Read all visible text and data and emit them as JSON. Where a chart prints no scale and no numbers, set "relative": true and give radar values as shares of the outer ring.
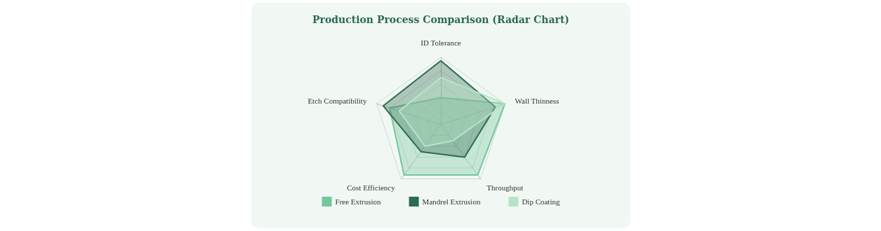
{
  "chart_data": {
    "type": "radar",
    "title": "Production Process Comparison (Radar Chart)",
    "relative": true,
    "categories": [
      "ID Tolerance",
      "Wall Thinness",
      "Throughput",
      "Cost Efficiency",
      "Etch Compatibility"
    ],
    "legend": "bottom",
    "series": [
      {
        "name": "Free Extrusion",
        "color": "#74c69d",
        "values": [
          0.4,
          1.0,
          0.93,
          0.93,
          0.8
        ]
      },
      {
        "name": "Mandrel Extrusion",
        "color": "#2d6a4f",
        "values": [
          0.95,
          0.85,
          0.6,
          0.5,
          0.9
        ]
      },
      {
        "name": "Dip Coating",
        "color": "#b7e4c7",
        "values": [
          0.7,
          1.0,
          0.3,
          0.4,
          0.65
        ]
      }
    ]
  }
}
